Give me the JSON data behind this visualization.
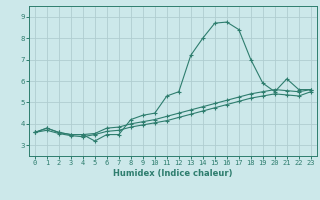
{
  "xlabel": "Humidex (Indice chaleur)",
  "ylabel": "",
  "bg_color": "#cce8ea",
  "grid_color": "#b0cdd0",
  "line_color": "#2e7d6e",
  "xlim": [
    -0.5,
    23.5
  ],
  "ylim": [
    2.5,
    9.5
  ],
  "xticks": [
    0,
    1,
    2,
    3,
    4,
    5,
    6,
    7,
    8,
    9,
    10,
    11,
    12,
    13,
    14,
    15,
    16,
    17,
    18,
    19,
    20,
    21,
    22,
    23
  ],
  "yticks": [
    3,
    4,
    5,
    6,
    7,
    8,
    9
  ],
  "line1_x": [
    0,
    1,
    2,
    3,
    4,
    5,
    6,
    7,
    8,
    9,
    10,
    11,
    12,
    13,
    14,
    15,
    16,
    17,
    18,
    19,
    20,
    21,
    22,
    23
  ],
  "line1_y": [
    3.6,
    3.8,
    3.6,
    3.5,
    3.5,
    3.2,
    3.5,
    3.5,
    4.2,
    4.4,
    4.5,
    5.3,
    5.5,
    7.2,
    8.0,
    8.7,
    8.75,
    8.4,
    7.0,
    5.9,
    5.5,
    6.1,
    5.6,
    5.6
  ],
  "line2_x": [
    0,
    1,
    2,
    3,
    4,
    5,
    6,
    7,
    8,
    9,
    10,
    11,
    12,
    13,
    14,
    15,
    16,
    17,
    18,
    19,
    20,
    21,
    22,
    23
  ],
  "line2_y": [
    3.6,
    3.8,
    3.6,
    3.5,
    3.5,
    3.55,
    3.8,
    3.85,
    4.0,
    4.1,
    4.2,
    4.35,
    4.5,
    4.65,
    4.8,
    4.95,
    5.1,
    5.25,
    5.4,
    5.5,
    5.6,
    5.55,
    5.5,
    5.6
  ],
  "line3_x": [
    0,
    1,
    2,
    3,
    4,
    5,
    6,
    7,
    8,
    9,
    10,
    11,
    12,
    13,
    14,
    15,
    16,
    17,
    18,
    19,
    20,
    21,
    22,
    23
  ],
  "line3_y": [
    3.6,
    3.7,
    3.55,
    3.45,
    3.4,
    3.5,
    3.65,
    3.7,
    3.85,
    3.95,
    4.05,
    4.15,
    4.3,
    4.45,
    4.6,
    4.75,
    4.9,
    5.05,
    5.2,
    5.3,
    5.4,
    5.35,
    5.3,
    5.5
  ]
}
